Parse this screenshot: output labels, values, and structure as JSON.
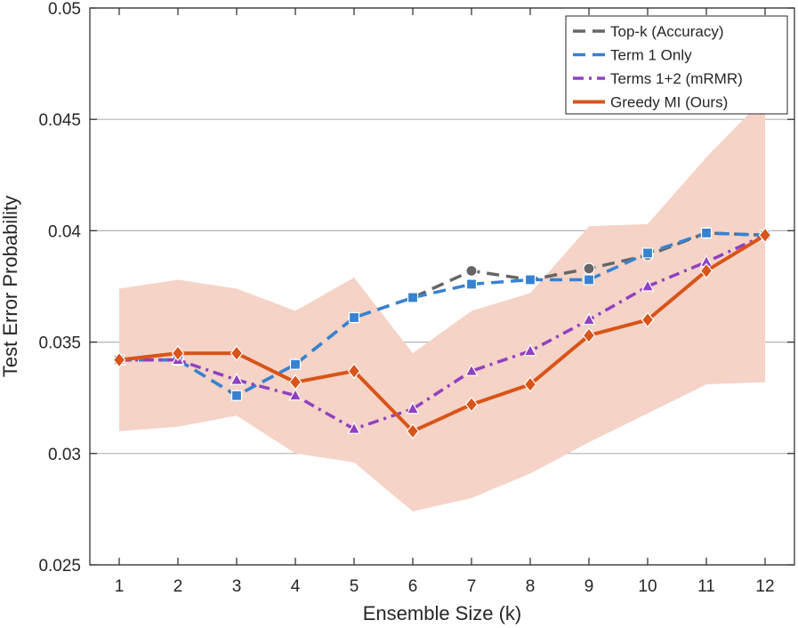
{
  "chart_data": {
    "type": "line",
    "title": "",
    "xlabel": "Ensemble Size (k)",
    "ylabel": "Test Error Probability",
    "xlim": [
      0.5,
      12.5
    ],
    "ylim": [
      0.025,
      0.05
    ],
    "x": [
      1,
      2,
      3,
      4,
      5,
      6,
      7,
      8,
      9,
      10,
      11,
      12
    ],
    "xticks": [
      "1",
      "2",
      "3",
      "4",
      "5",
      "6",
      "7",
      "8",
      "9",
      "10",
      "11",
      "12"
    ],
    "yticks": [
      "0.025",
      "0.03",
      "0.035",
      "0.04",
      "0.045",
      "0.05"
    ],
    "ytick_values": [
      0.025,
      0.03,
      0.035,
      0.04,
      0.045,
      0.05
    ],
    "grid": "horizontal",
    "legend_position": "top-right",
    "band": {
      "series": "Greedy MI (Ours)",
      "color": "#f5d3c7",
      "upper": [
        0.0374,
        0.0378,
        0.0374,
        0.0364,
        0.0379,
        0.0345,
        0.0364,
        0.0372,
        0.0402,
        0.0403,
        0.0433,
        0.046
      ],
      "lower": [
        0.031,
        0.0312,
        0.0317,
        0.03,
        0.0296,
        0.0274,
        0.028,
        0.0291,
        0.0305,
        0.0318,
        0.0331,
        0.0332
      ]
    },
    "series": [
      {
        "name": "Top-k (Accuracy)",
        "color": "#666666",
        "dash": "dashed",
        "marker": "circle",
        "values": [
          0.0342,
          0.0342,
          0.0326,
          0.034,
          0.0361,
          0.037,
          0.0382,
          0.0378,
          0.0383,
          0.0389,
          0.0399,
          0.0398
        ]
      },
      {
        "name": "Term 1 Only",
        "color": "#3682d2",
        "dash": "dashed",
        "marker": "square",
        "values": [
          0.0342,
          0.0342,
          0.0326,
          0.034,
          0.0361,
          0.037,
          0.0376,
          0.0378,
          0.0378,
          0.039,
          0.0399,
          0.0398
        ]
      },
      {
        "name": "Terms 1+2 (mRMR)",
        "color": "#9140c2",
        "dash": "dashdot",
        "marker": "triangle",
        "values": [
          0.0342,
          0.0342,
          0.0333,
          0.0326,
          0.0311,
          0.032,
          0.0337,
          0.0346,
          0.036,
          0.0375,
          0.0386,
          0.0398
        ]
      },
      {
        "name": "Greedy MI (Ours)",
        "color": "#d95418",
        "dash": "solid",
        "marker": "diamond",
        "values": [
          0.0342,
          0.0345,
          0.0345,
          0.0332,
          0.0337,
          0.031,
          0.0322,
          0.0331,
          0.0353,
          0.036,
          0.0382,
          0.0398
        ]
      }
    ]
  }
}
